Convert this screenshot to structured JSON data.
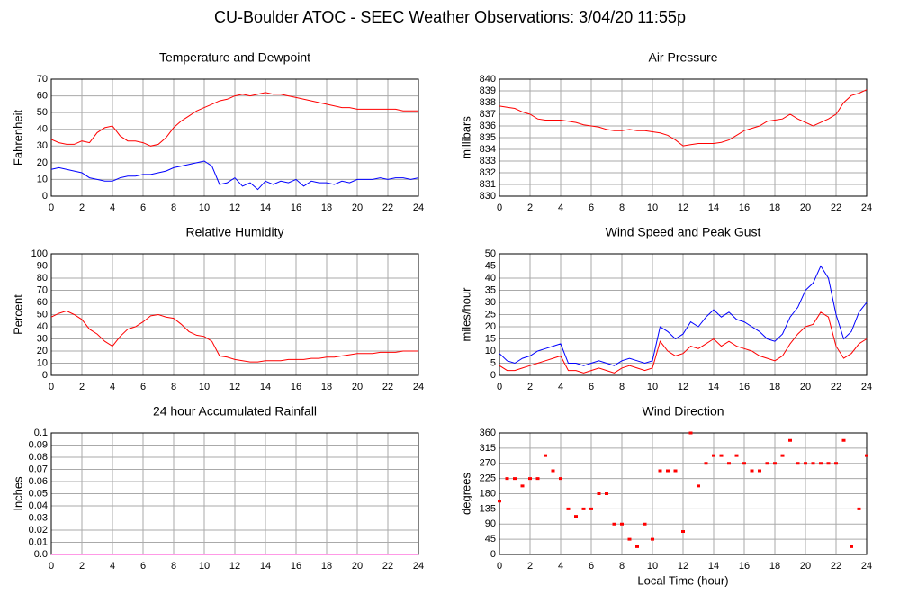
{
  "title": "CU-Boulder ATOC - SEEC Weather Observations: 3/04/20 11:55p",
  "chart_data": [
    {
      "type": "line",
      "title": "Temperature and Dewpoint",
      "y_label": "Fahrenheit",
      "x": [
        0,
        0.5,
        1,
        1.5,
        2,
        2.5,
        3,
        3.5,
        4,
        4.5,
        5,
        5.5,
        6,
        6.5,
        7,
        7.5,
        8,
        8.5,
        9,
        9.5,
        10,
        10.5,
        11,
        11.5,
        12,
        12.5,
        13,
        13.5,
        14,
        14.5,
        15,
        15.5,
        16,
        16.5,
        17,
        17.5,
        18,
        18.5,
        19,
        19.5,
        20,
        20.5,
        21,
        21.5,
        22,
        22.5,
        23,
        23.5,
        24
      ],
      "xlim": [
        0,
        24
      ],
      "xticks": [
        0,
        2,
        4,
        6,
        8,
        10,
        12,
        14,
        16,
        18,
        20,
        22,
        24
      ],
      "ylim": [
        0,
        70
      ],
      "yticks": [
        0,
        10,
        20,
        30,
        40,
        50,
        60,
        70
      ],
      "grid": true,
      "series": [
        {
          "color": "#ff0000",
          "values": [
            34,
            32,
            31,
            31,
            33,
            32,
            38,
            41,
            42,
            36,
            33,
            33,
            32,
            30,
            31,
            35,
            41,
            45,
            48,
            51,
            53,
            55,
            57,
            58,
            60,
            61,
            60,
            61,
            62,
            61,
            61,
            60,
            59,
            58,
            57,
            56,
            55,
            54,
            53,
            53,
            52,
            52,
            52,
            52,
            52,
            52,
            51,
            51,
            51
          ]
        },
        {
          "color": "#0000ff",
          "values": [
            16,
            17,
            16,
            15,
            14,
            11,
            10,
            9,
            9,
            11,
            12,
            12,
            13,
            13,
            14,
            15,
            17,
            18,
            19,
            20,
            21,
            18,
            7,
            8,
            11,
            6,
            8,
            4,
            9,
            7,
            9,
            8,
            10,
            6,
            9,
            8,
            8,
            7,
            9,
            8,
            10,
            10,
            10,
            11,
            10,
            11,
            11,
            10,
            11
          ]
        }
      ]
    },
    {
      "type": "line",
      "title": "Air Pressure",
      "y_label": "millibars",
      "x": [
        0,
        0.5,
        1,
        1.5,
        2,
        2.5,
        3,
        3.5,
        4,
        4.5,
        5,
        5.5,
        6,
        6.5,
        7,
        7.5,
        8,
        8.5,
        9,
        9.5,
        10,
        10.5,
        11,
        11.5,
        12,
        12.5,
        13,
        13.5,
        14,
        14.5,
        15,
        15.5,
        16,
        16.5,
        17,
        17.5,
        18,
        18.5,
        19,
        19.5,
        20,
        20.5,
        21,
        21.5,
        22,
        22.5,
        23,
        23.5,
        24
      ],
      "xlim": [
        0,
        24
      ],
      "xticks": [
        0,
        2,
        4,
        6,
        8,
        10,
        12,
        14,
        16,
        18,
        20,
        22,
        24
      ],
      "ylim": [
        830,
        840
      ],
      "yticks": [
        830,
        831,
        832,
        833,
        834,
        835,
        836,
        837,
        838,
        839,
        840
      ],
      "grid": true,
      "series": [
        {
          "color": "#ff0000",
          "values": [
            837.7,
            837.6,
            837.5,
            837.2,
            837.0,
            836.6,
            836.5,
            836.5,
            836.5,
            836.4,
            836.3,
            836.1,
            836.0,
            835.9,
            835.7,
            835.6,
            835.6,
            835.7,
            835.6,
            835.6,
            835.5,
            835.4,
            835.2,
            834.8,
            834.3,
            834.4,
            834.5,
            834.5,
            834.5,
            834.6,
            834.8,
            835.2,
            835.6,
            835.8,
            836.0,
            836.4,
            836.5,
            836.6,
            837.0,
            836.6,
            836.3,
            836.0,
            836.3,
            836.6,
            837.0,
            838.0,
            838.6,
            838.8,
            839.1
          ]
        }
      ]
    },
    {
      "type": "line",
      "title": "Relative Humidity",
      "y_label": "Percent",
      "x": [
        0,
        0.5,
        1,
        1.5,
        2,
        2.5,
        3,
        3.5,
        4,
        4.5,
        5,
        5.5,
        6,
        6.5,
        7,
        7.5,
        8,
        8.5,
        9,
        9.5,
        10,
        10.5,
        11,
        11.5,
        12,
        12.5,
        13,
        13.5,
        14,
        14.5,
        15,
        15.5,
        16,
        16.5,
        17,
        17.5,
        18,
        18.5,
        19,
        19.5,
        20,
        20.5,
        21,
        21.5,
        22,
        22.5,
        23,
        23.5,
        24
      ],
      "xlim": [
        0,
        24
      ],
      "xticks": [
        0,
        2,
        4,
        6,
        8,
        10,
        12,
        14,
        16,
        18,
        20,
        22,
        24
      ],
      "ylim": [
        0,
        100
      ],
      "yticks": [
        0,
        10,
        20,
        30,
        40,
        50,
        60,
        70,
        80,
        90,
        100
      ],
      "grid": true,
      "series": [
        {
          "color": "#ff0000",
          "values": [
            48,
            51,
            53,
            50,
            46,
            38,
            34,
            28,
            24,
            32,
            38,
            40,
            44,
            49,
            50,
            48,
            47,
            42,
            36,
            33,
            32,
            28,
            16,
            15,
            13,
            12,
            11,
            11,
            12,
            12,
            12,
            13,
            13,
            13,
            14,
            14,
            15,
            15,
            16,
            17,
            18,
            18,
            18,
            19,
            19,
            19,
            20,
            20,
            20
          ]
        }
      ]
    },
    {
      "type": "line",
      "title": "Wind Speed and Peak Gust",
      "y_label": "miles/hour",
      "x": [
        0,
        0.5,
        1,
        1.5,
        2,
        2.5,
        3,
        3.5,
        4,
        4.5,
        5,
        5.5,
        6,
        6.5,
        7,
        7.5,
        8,
        8.5,
        9,
        9.5,
        10,
        10.5,
        11,
        11.5,
        12,
        12.5,
        13,
        13.5,
        14,
        14.5,
        15,
        15.5,
        16,
        16.5,
        17,
        17.5,
        18,
        18.5,
        19,
        19.5,
        20,
        20.5,
        21,
        21.5,
        22,
        22.5,
        23,
        23.5,
        24
      ],
      "xlim": [
        0,
        24
      ],
      "xticks": [
        0,
        2,
        4,
        6,
        8,
        10,
        12,
        14,
        16,
        18,
        20,
        22,
        24
      ],
      "ylim": [
        0,
        50
      ],
      "yticks": [
        0,
        5,
        10,
        15,
        20,
        25,
        30,
        35,
        40,
        45,
        50
      ],
      "grid": true,
      "series": [
        {
          "color": "#0000ff",
          "values": [
            9,
            6,
            5,
            7,
            8,
            10,
            11,
            12,
            13,
            5,
            5,
            4,
            5,
            6,
            5,
            4,
            6,
            7,
            6,
            5,
            6,
            20,
            18,
            15,
            17,
            22,
            20,
            24,
            27,
            24,
            26,
            23,
            22,
            20,
            18,
            15,
            14,
            17,
            24,
            28,
            35,
            38,
            45,
            40,
            25,
            15,
            18,
            26,
            30
          ]
        },
        {
          "color": "#ff0000",
          "values": [
            4,
            2,
            2,
            3,
            4,
            5,
            6,
            7,
            8,
            2,
            2,
            1,
            2,
            3,
            2,
            1,
            3,
            4,
            3,
            2,
            3,
            14,
            10,
            8,
            9,
            12,
            11,
            13,
            15,
            12,
            14,
            12,
            11,
            10,
            8,
            7,
            6,
            8,
            13,
            17,
            20,
            21,
            26,
            24,
            12,
            7,
            9,
            13,
            15
          ]
        }
      ]
    },
    {
      "type": "line",
      "title": "24 hour Accumulated Rainfall",
      "y_label": "Inches",
      "x": [
        0,
        0.5,
        1,
        1.5,
        2,
        2.5,
        3,
        3.5,
        4,
        4.5,
        5,
        5.5,
        6,
        6.5,
        7,
        7.5,
        8,
        8.5,
        9,
        9.5,
        10,
        10.5,
        11,
        11.5,
        12,
        12.5,
        13,
        13.5,
        14,
        14.5,
        15,
        15.5,
        16,
        16.5,
        17,
        17.5,
        18,
        18.5,
        19,
        19.5,
        20,
        20.5,
        21,
        21.5,
        22,
        22.5,
        23,
        23.5,
        24
      ],
      "xlim": [
        0,
        24
      ],
      "xticks": [
        0,
        2,
        4,
        6,
        8,
        10,
        12,
        14,
        16,
        18,
        20,
        22,
        24
      ],
      "ylim": [
        0,
        0.1
      ],
      "yticks": [
        {
          "value": 0,
          "label": "0.0"
        },
        0.01,
        0.02,
        0.03,
        0.04,
        0.05,
        0.06,
        0.07,
        0.08,
        0.09,
        0.1
      ],
      "grid": true,
      "series": [
        {
          "color": "#ff33cc",
          "values": [
            0,
            0,
            0,
            0,
            0,
            0,
            0,
            0,
            0,
            0,
            0,
            0,
            0,
            0,
            0,
            0,
            0,
            0,
            0,
            0,
            0,
            0,
            0,
            0,
            0,
            0,
            0,
            0,
            0,
            0,
            0,
            0,
            0,
            0,
            0,
            0,
            0,
            0,
            0,
            0,
            0,
            0,
            0,
            0,
            0,
            0,
            0,
            0,
            0
          ]
        }
      ]
    },
    {
      "type": "scatter",
      "title": "Wind Direction",
      "y_label": "degrees",
      "x_label": "Local Time (hour)",
      "x": [
        0,
        0.5,
        1,
        1.5,
        2,
        2.5,
        3,
        3.5,
        4,
        4.5,
        5,
        5.5,
        6,
        6.5,
        7,
        7.5,
        8,
        8.5,
        9,
        9.5,
        10,
        10.5,
        11,
        11.5,
        12,
        12.5,
        13,
        13.5,
        14,
        14.5,
        15,
        15.5,
        16,
        16.5,
        17,
        17.5,
        18,
        18.5,
        19,
        19.5,
        20,
        20.5,
        21,
        21.5,
        22,
        22.5,
        23,
        23.5,
        24
      ],
      "xlim": [
        0,
        24
      ],
      "xticks": [
        0,
        2,
        4,
        6,
        8,
        10,
        12,
        14,
        16,
        18,
        20,
        22,
        24
      ],
      "ylim": [
        0,
        360
      ],
      "yticks": [
        0,
        45,
        90,
        135,
        180,
        225,
        270,
        315,
        360
      ],
      "grid": true,
      "series": [
        {
          "color": "#ff0000",
          "values": [
            158,
            225,
            225,
            203,
            225,
            225,
            293,
            248,
            225,
            135,
            113,
            135,
            135,
            180,
            180,
            90,
            90,
            45,
            23,
            90,
            45,
            248,
            248,
            248,
            68,
            360,
            203,
            270,
            293,
            293,
            270,
            293,
            270,
            248,
            248,
            270,
            270,
            293,
            338,
            270,
            270,
            270,
            270,
            270,
            270,
            338,
            23,
            135,
            293
          ]
        }
      ]
    }
  ]
}
